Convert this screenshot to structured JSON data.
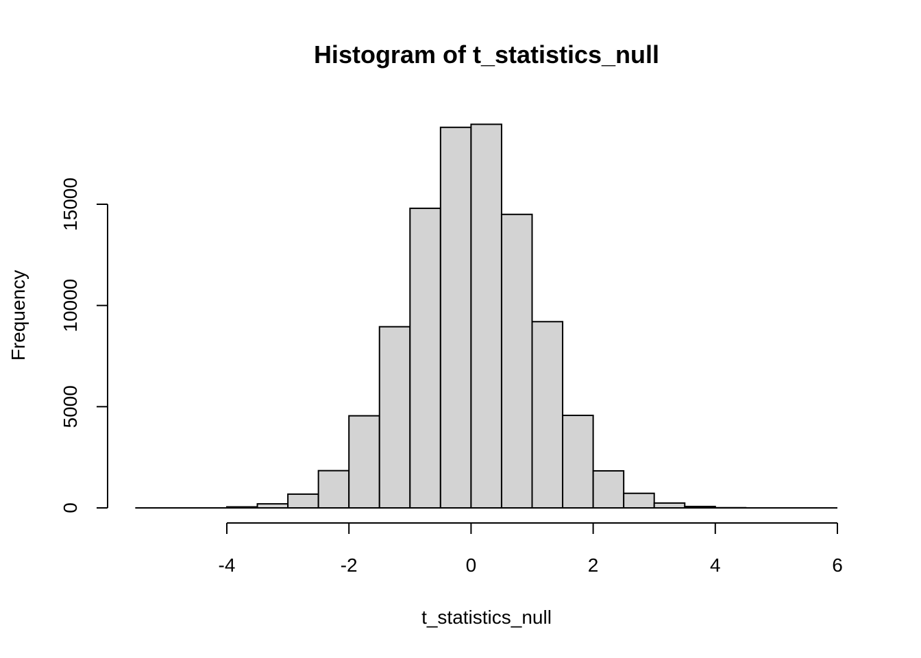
{
  "chart_data": {
    "type": "bar",
    "title": "Histogram of t_statistics_null",
    "xlabel": "t_statistics_null",
    "ylabel": "Frequency",
    "bin_edges": [
      -5.5,
      -5.0,
      -4.5,
      -4.0,
      -3.5,
      -3.0,
      -2.5,
      -2.0,
      -1.5,
      -1.0,
      -0.5,
      0.0,
      0.5,
      1.0,
      1.5,
      2.0,
      2.5,
      3.0,
      3.5,
      4.0,
      4.5,
      5.0,
      5.5,
      6.0
    ],
    "values": [
      0,
      0,
      0,
      50,
      200,
      680,
      1840,
      4550,
      8950,
      14800,
      18800,
      18950,
      14500,
      9200,
      4570,
      1830,
      720,
      240,
      70,
      10,
      0,
      0,
      0
    ],
    "x_ticks": [
      "-4",
      "-2",
      "0",
      "2",
      "4",
      "6"
    ],
    "x_tick_values": [
      -4,
      -2,
      0,
      2,
      4,
      6
    ],
    "y_ticks": [
      "0",
      "5000",
      "10000",
      "15000"
    ],
    "y_tick_values": [
      0,
      5000,
      10000,
      15000
    ],
    "xlim": [
      -5.5,
      6
    ],
    "ylim": [
      0,
      19000
    ],
    "grid": false,
    "legend": "none"
  }
}
